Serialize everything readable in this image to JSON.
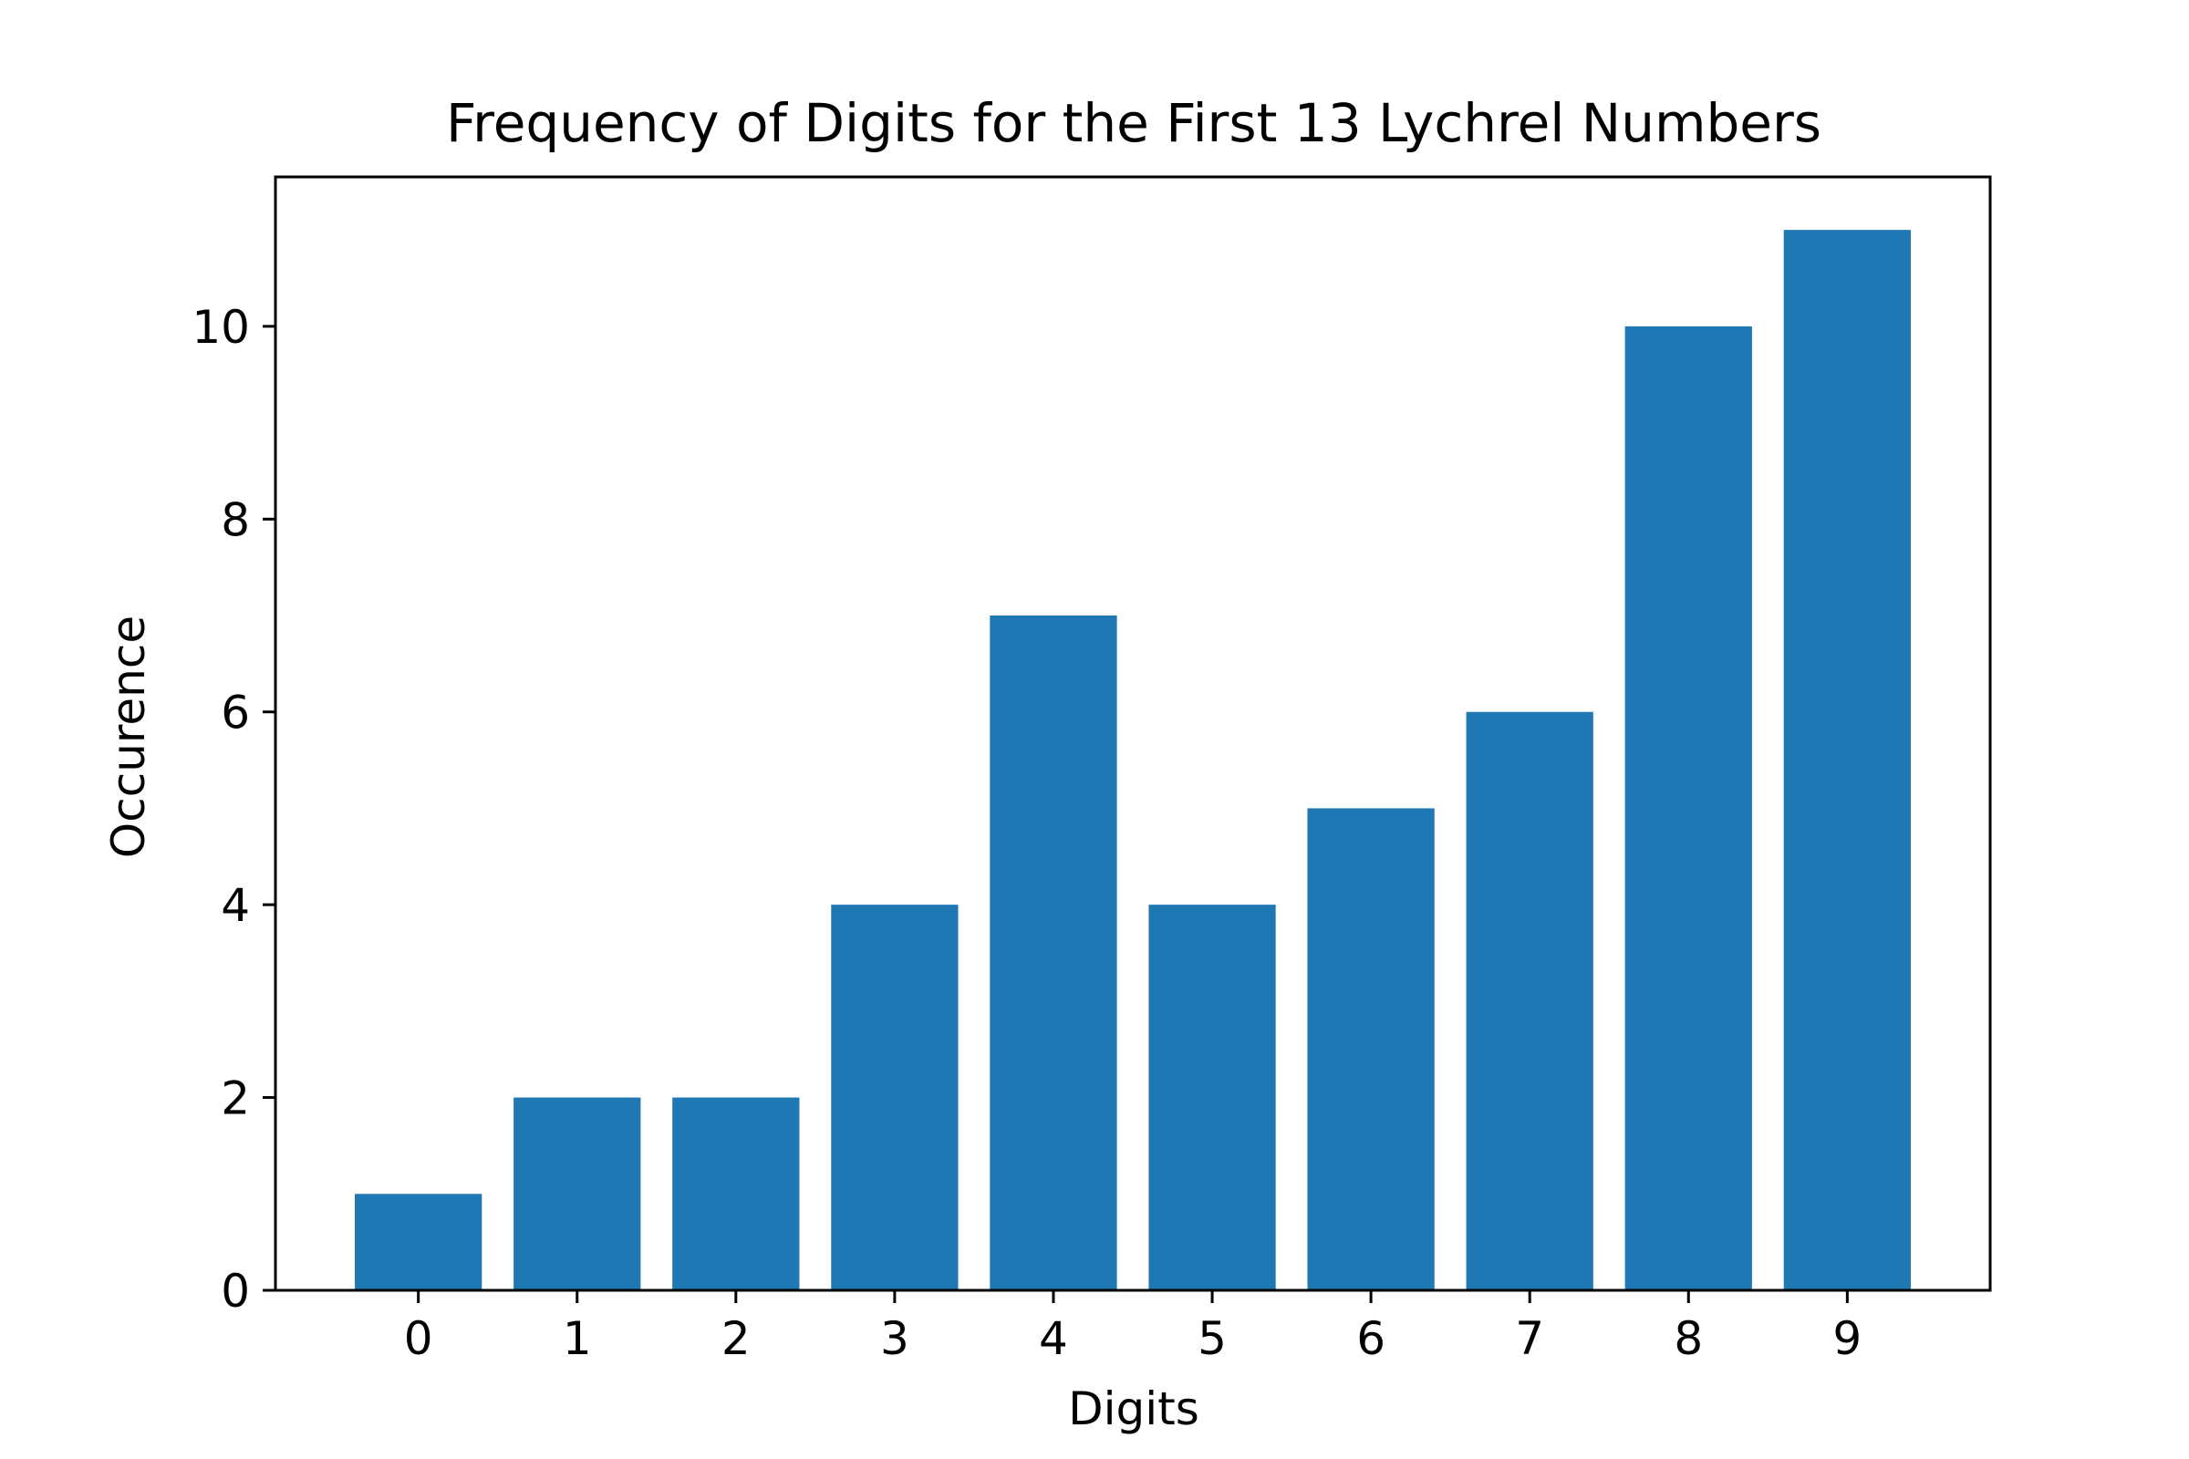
{
  "chart_data": {
    "type": "bar",
    "title": "Frequency of Digits for the First 13 Lychrel Numbers",
    "xlabel": "Digits",
    "ylabel": "Occurence",
    "categories": [
      "0",
      "1",
      "2",
      "3",
      "4",
      "5",
      "6",
      "7",
      "8",
      "9"
    ],
    "values": [
      1,
      2,
      2,
      4,
      7,
      4,
      5,
      6,
      10,
      11
    ],
    "xlim": [
      -0.9,
      9.9
    ],
    "ylim": [
      0,
      11.55
    ],
    "yticks": [
      0,
      2,
      4,
      6,
      8,
      10
    ],
    "ytick_labels": [
      "0",
      "2",
      "4",
      "6",
      "8",
      "10"
    ],
    "bar_color": "#1f77b4",
    "grid": false,
    "legend": "none"
  }
}
